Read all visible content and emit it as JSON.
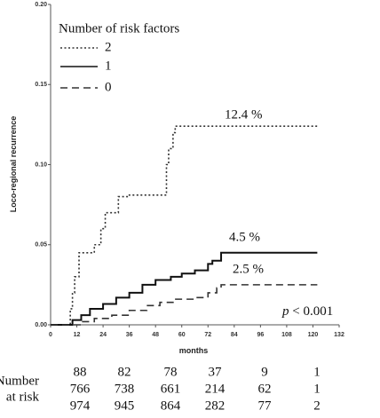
{
  "chart_data": {
    "type": "step",
    "y_label": "Loco-regional recurrence",
    "x_label": "months",
    "legend_title": "Number of risk factors",
    "legend": "upper left",
    "xlim": [
      0,
      132
    ],
    "xticks": [
      0,
      12,
      24,
      36,
      48,
      60,
      72,
      84,
      96,
      108,
      120,
      132
    ],
    "ylim": [
      0,
      0.2
    ],
    "yticks": [
      {
        "value": 0,
        "label": "0.00"
      },
      {
        "value": 0.05,
        "label": "0.05"
      },
      {
        "value": 0.1,
        "label": "0.10"
      },
      {
        "value": 0.15,
        "label": "0.15"
      },
      {
        "value": 0.2,
        "label": "0.20"
      }
    ],
    "series": [
      {
        "name": "2",
        "color": "#333333",
        "line_style": "dotted",
        "x": [
          0,
          7,
          9,
          10,
          11,
          13,
          18,
          20,
          23,
          25,
          31,
          36,
          50,
          53,
          54,
          56,
          57,
          122
        ],
        "values": [
          0,
          0,
          0.01,
          0.02,
          0.03,
          0.045,
          0.045,
          0.05,
          0.06,
          0.07,
          0.08,
          0.081,
          0.081,
          0.1,
          0.11,
          0.12,
          0.124,
          0.124
        ]
      },
      {
        "name": "1",
        "color": "#111111",
        "line_style": "solid",
        "x": [
          0,
          7,
          10,
          14,
          18,
          24,
          30,
          36,
          42,
          48,
          55,
          60,
          66,
          72,
          74,
          78,
          122
        ],
        "values": [
          0,
          0,
          0.003,
          0.006,
          0.01,
          0.013,
          0.017,
          0.02,
          0.025,
          0.028,
          0.03,
          0.032,
          0.034,
          0.038,
          0.04,
          0.045,
          0.045
        ]
      },
      {
        "name": "0",
        "color": "#333333",
        "line_style": "dashed",
        "x": [
          0,
          9,
          14,
          20,
          28,
          36,
          44,
          50,
          56,
          66,
          72,
          76,
          78,
          122
        ],
        "values": [
          0,
          0,
          0.002,
          0.004,
          0.006,
          0.009,
          0.012,
          0.014,
          0.016,
          0.017,
          0.02,
          0.023,
          0.025,
          0.025
        ]
      }
    ],
    "annotations": [
      "12.4 %",
      "4.5 %",
      "2.5 %"
    ],
    "p_value": {
      "symbol": "p",
      "text": "< 0.001"
    },
    "risk_table": {
      "title_lines": [
        "Number",
        "at risk"
      ],
      "rows": [
        [
          88,
          82,
          78,
          37,
          9,
          1
        ],
        [
          766,
          738,
          661,
          214,
          62,
          1
        ],
        [
          974,
          945,
          864,
          282,
          77,
          2
        ]
      ]
    }
  }
}
